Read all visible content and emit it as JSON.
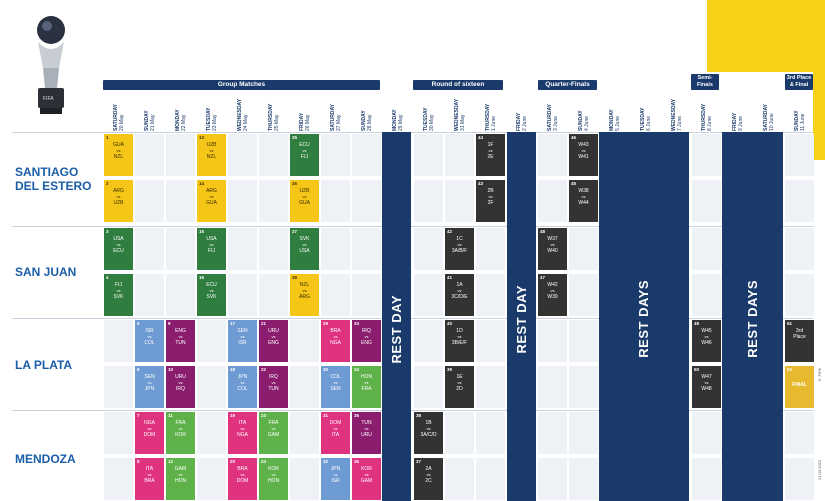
{
  "stages": {
    "group": "Group Matches",
    "r16": "Round of sixteen",
    "qf": "Quarter-Finals",
    "sf": "Semi-Finals",
    "final": "3rd Place & Final"
  },
  "days": [
    {
      "w": "SATURDAY",
      "d": "20 May"
    },
    {
      "w": "SUNDAY",
      "d": "21 May"
    },
    {
      "w": "MONDAY",
      "d": "22 May"
    },
    {
      "w": "TUESDAY",
      "d": "23 May"
    },
    {
      "w": "WEDNESDAY",
      "d": "24 May"
    },
    {
      "w": "THURSDAY",
      "d": "25 May"
    },
    {
      "w": "FRIDAY",
      "d": "26 May"
    },
    {
      "w": "SATURDAY",
      "d": "27 May"
    },
    {
      "w": "SUNDAY",
      "d": "28 May"
    },
    {
      "w": "MONDAY",
      "d": "29 May"
    },
    {
      "w": "TUESDAY",
      "d": "30 May"
    },
    {
      "w": "WEDNESDAY",
      "d": "31 May"
    },
    {
      "w": "THURSDAY",
      "d": "1 June"
    },
    {
      "w": "FRIDAY",
      "d": "2 June"
    },
    {
      "w": "SATURDAY",
      "d": "3 June"
    },
    {
      "w": "SUNDAY",
      "d": "4 June"
    },
    {
      "w": "MONDAY",
      "d": "5 June"
    },
    {
      "w": "TUESDAY",
      "d": "6 June"
    },
    {
      "w": "WEDNESDAY",
      "d": "7 June"
    },
    {
      "w": "THURSDAY",
      "d": "8 June"
    },
    {
      "w": "FRIDAY",
      "d": "9 June"
    },
    {
      "w": "SATURDAY",
      "d": "10 June"
    },
    {
      "w": "SUNDAY",
      "d": "11 June"
    }
  ],
  "venues": {
    "v1a": "SANTIAGO",
    "v1b": "DEL ESTERO",
    "v2": "SAN JUAN",
    "v3": "LA PLATA",
    "v4": "MENDOZA"
  },
  "rest": {
    "day": "REST DAY",
    "days": "REST DAYS"
  },
  "matches": {
    "m1": {
      "n": "1",
      "a": "GUA",
      "b": "NZL"
    },
    "m2": {
      "n": "2",
      "a": "ARG",
      "b": "UZB"
    },
    "m13": {
      "n": "13",
      "a": "UZB",
      "b": "NZL"
    },
    "m14": {
      "n": "14",
      "a": "ARG",
      "b": "GUA"
    },
    "m25": {
      "n": "25",
      "a": "ECU",
      "b": "FIJ"
    },
    "m26": {
      "n": "26",
      "a": "UZB",
      "b": "GUA"
    },
    "m3": {
      "n": "3",
      "a": "USA",
      "b": "ECU"
    },
    "m4": {
      "n": "4",
      "a": "FIJ",
      "b": "SVK"
    },
    "m15": {
      "n": "15",
      "a": "USA",
      "b": "FIJ"
    },
    "m16": {
      "n": "16",
      "a": "ECU",
      "b": "SVK"
    },
    "m27": {
      "n": "27",
      "a": "SVK",
      "b": "USA"
    },
    "m28": {
      "n": "28",
      "a": "NZL",
      "b": "ARG"
    },
    "m5": {
      "n": "5",
      "a": "ISR",
      "b": "COL"
    },
    "m6": {
      "n": "6",
      "a": "SEN",
      "b": "JPN"
    },
    "m9": {
      "n": "9",
      "a": "ENG",
      "b": "TUN"
    },
    "m10": {
      "n": "10",
      "a": "URU",
      "b": "IRQ"
    },
    "m17": {
      "n": "17",
      "a": "SEN",
      "b": "ISR"
    },
    "m18": {
      "n": "18",
      "a": "JPN",
      "b": "COL"
    },
    "m21": {
      "n": "21",
      "a": "URU",
      "b": "ENG"
    },
    "m22": {
      "n": "22",
      "a": "IRQ",
      "b": "TUN"
    },
    "m29": {
      "n": "29",
      "a": "BRA",
      "b": "NGA"
    },
    "m30": {
      "n": "30",
      "a": "COL",
      "b": "SEN"
    },
    "m33": {
      "n": "33",
      "a": "IRQ",
      "b": "ENG"
    },
    "m34": {
      "n": "34",
      "a": "HON",
      "b": "FRA"
    },
    "m7": {
      "n": "7",
      "a": "NGA",
      "b": "DOM"
    },
    "m8": {
      "n": "8",
      "a": "ITA",
      "b": "BRA"
    },
    "m11": {
      "n": "11",
      "a": "FRA",
      "b": "KOR"
    },
    "m12": {
      "n": "12",
      "a": "GAM",
      "b": "HON"
    },
    "m19": {
      "n": "19",
      "a": "ITA",
      "b": "NGA"
    },
    "m20": {
      "n": "20",
      "a": "BRA",
      "b": "DOM"
    },
    "m23": {
      "n": "23",
      "a": "FRA",
      "b": "GAM"
    },
    "m24": {
      "n": "24",
      "a": "KOR",
      "b": "HON"
    },
    "m31": {
      "n": "31",
      "a": "DOM",
      "b": "ITA"
    },
    "m32": {
      "n": "32",
      "a": "JPN",
      "b": "ISR"
    },
    "m35": {
      "n": "35",
      "a": "TUN",
      "b": "URU"
    },
    "m36": {
      "n": "36",
      "a": "KOR",
      "b": "GAM"
    },
    "m37": {
      "n": "37",
      "a": "2A",
      "b": "2C"
    },
    "m38": {
      "n": "38",
      "a": "1B",
      "b": "3A/C/D"
    },
    "m39": {
      "n": "39",
      "a": "1E",
      "b": "2D"
    },
    "m40": {
      "n": "40",
      "a": "1D",
      "b": "3B/E/F"
    },
    "m41": {
      "n": "41",
      "a": "1A",
      "b": "3C/D/E"
    },
    "m42": {
      "n": "42",
      "a": "1C",
      "b": "3A/B/F"
    },
    "m43": {
      "n": "43",
      "a": "2B",
      "b": "2F"
    },
    "m44": {
      "n": "44",
      "a": "1F",
      "b": "2E"
    },
    "m45": {
      "n": "45",
      "a": "W38",
      "b": "W44"
    },
    "m46": {
      "n": "46",
      "a": "W43",
      "b": "W41"
    },
    "m47": {
      "n": "47",
      "a": "W42",
      "b": "W39"
    },
    "m48": {
      "n": "48",
      "a": "W37",
      "b": "W40"
    },
    "m49": {
      "n": "49",
      "a": "W45",
      "b": "W46"
    },
    "m50": {
      "n": "50",
      "a": "W47",
      "b": "W48"
    },
    "m51": {
      "n": "51",
      "a": "3rd",
      "b": "Place"
    },
    "m52": {
      "n": "52",
      "a": "FINAL"
    }
  },
  "vs": "vs",
  "copyright": "© FIFA",
  "date_stamp": "21.04.2023"
}
